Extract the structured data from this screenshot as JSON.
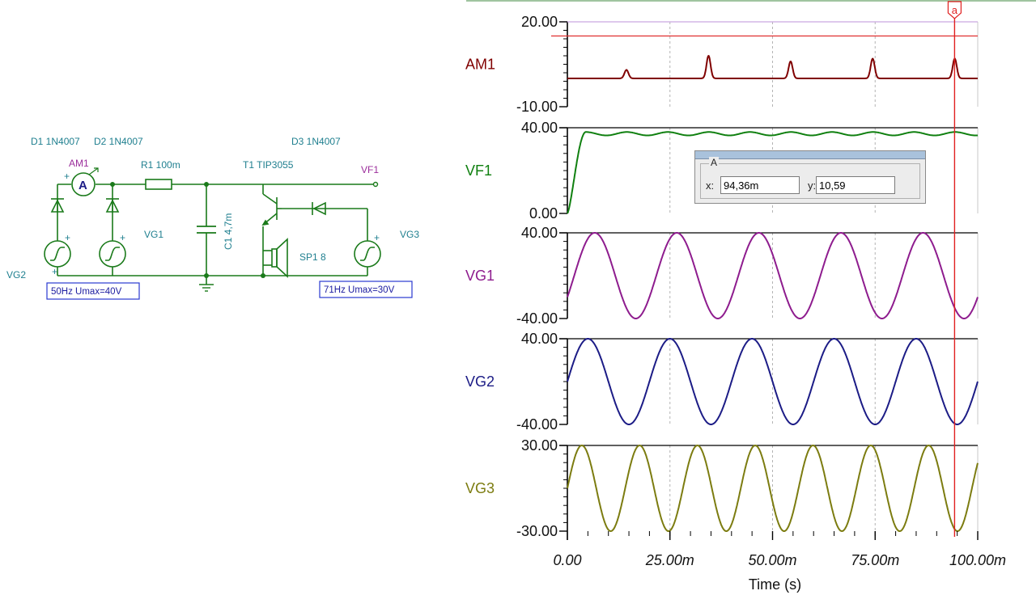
{
  "schematic": {
    "labels": {
      "d1": "D1 1N4007",
      "d2": "D2 1N4007",
      "d3": "D3 1N4007",
      "am1": "AM1",
      "ammeter_symbol": "A",
      "r1": "R1 100m",
      "t1": "T1 TIP3055",
      "vf1": "VF1",
      "c1": "C1 4,7m",
      "vg1": "VG1",
      "vg2": "VG2",
      "vg3": "VG3",
      "sp1": "SP1 8",
      "plus": "+"
    },
    "source_boxes": {
      "left": "50Hz Umax=40V",
      "right": "71Hz Umax=30V"
    }
  },
  "chart_data": {
    "type": "line",
    "x_axis": {
      "label": "Time (s)",
      "range": [
        0,
        0.1
      ],
      "ticks": [
        "0.00",
        "25.00m",
        "50.00m",
        "75.00m",
        "100.00m"
      ]
    },
    "cursor": {
      "label": "a",
      "x": 0.09436
    },
    "panels": [
      {
        "name": "AM1",
        "color": "#800000",
        "ylim": [
          -10,
          20
        ],
        "yticks": [
          "20.00",
          "-10.00"
        ],
        "hline": 15,
        "ref_color": "#e03030"
      },
      {
        "name": "VF1",
        "color": "#108010",
        "ylim": [
          0,
          40
        ],
        "yticks": [
          "40.00",
          "0.00"
        ]
      },
      {
        "name": "VG1",
        "color": "#8e1c8e",
        "ylim": [
          -40,
          40
        ],
        "yticks": [
          "40.00",
          "-40.00"
        ],
        "freq_hz": 50,
        "amplitude": 40,
        "phase_deg": -30
      },
      {
        "name": "VG2",
        "color": "#1c1c86",
        "ylim": [
          -40,
          40
        ],
        "yticks": [
          "40.00",
          "-40.00"
        ],
        "freq_hz": 50,
        "amplitude": 40,
        "phase_deg": 0
      },
      {
        "name": "VG3",
        "color": "#7c7c10",
        "ylim": [
          -30,
          30
        ],
        "yticks": [
          "30.00",
          "-30.00"
        ],
        "freq_hz": 71,
        "amplitude": 30,
        "phase_deg": 0
      }
    ]
  },
  "cursor_box": {
    "group_label": "A",
    "x_label": "x:",
    "x_value": "94,36m",
    "y_label": "y:",
    "y_value": "10,59"
  }
}
